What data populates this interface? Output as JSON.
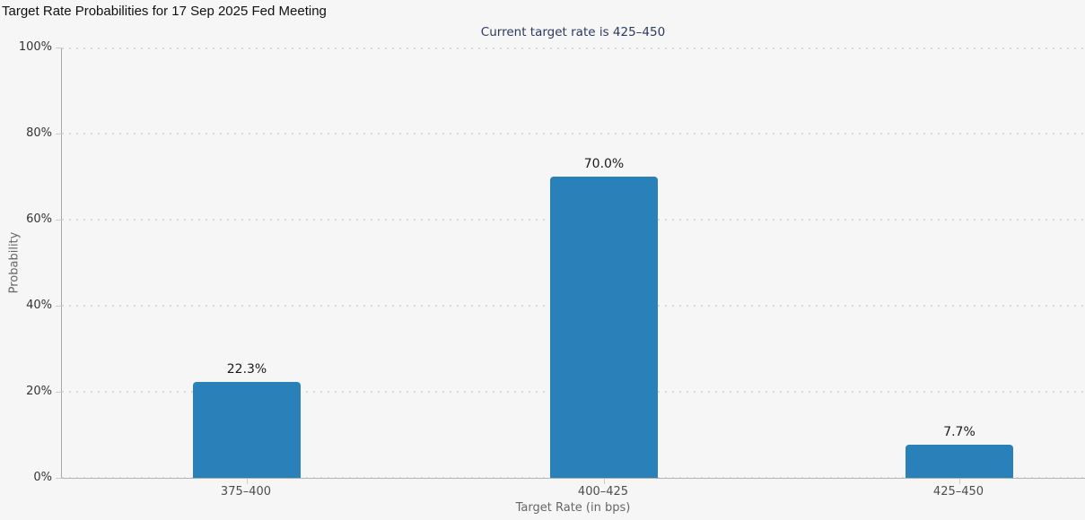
{
  "page": {
    "title": "Target Rate Probabilities for 17 Sep 2025 Fed Meeting"
  },
  "chart_data": {
    "type": "bar",
    "title": "Target Rate Probabilities for 17 Sep 2025 Fed Meeting",
    "subtitle": "Current target rate is 425–450",
    "categories": [
      "375–400",
      "400–425",
      "425–450"
    ],
    "values": [
      22.3,
      70.0,
      7.7
    ],
    "value_labels": [
      "22.3%",
      "70.0%",
      "7.7%"
    ],
    "xlabel": "Target Rate (in bps)",
    "ylabel": "Probability",
    "ylim": [
      0,
      100
    ],
    "yticks": [
      0,
      20,
      40,
      60,
      80,
      100
    ],
    "ytick_labels": [
      "0%",
      "20%",
      "40%",
      "60%",
      "80%",
      "100%"
    ],
    "grid": "horizontal dotted gridlines on",
    "legend": "none",
    "colors": {
      "bar": "#2a80b9",
      "background": "#f6f6f6",
      "subtitle_text": "#2b3a5f",
      "gridline": "#d9d9d9",
      "axis_line": "#b3b3b3"
    }
  }
}
